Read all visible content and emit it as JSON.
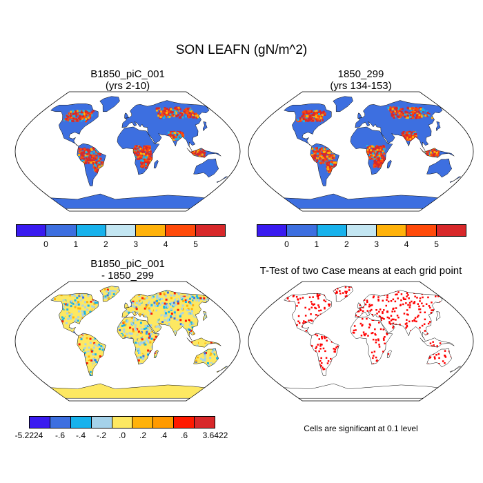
{
  "title": "SON LEAFN (gN/m^2)",
  "panels": {
    "tl": {
      "title1": "B1850_piC_001",
      "title2": "(yrs 2-10)"
    },
    "tr": {
      "title1": "1850_299",
      "title2": "(yrs 134-153)"
    },
    "bl": {
      "title1": "B1850_piC_001",
      "title2": "- 1850_299"
    },
    "br": {
      "title1": "T-Test of two Case means at each grid point",
      "note": "Cells are significant at 0.1 level"
    }
  },
  "colorbar_top": {
    "colors": [
      "#3a1bf0",
      "#3d6fe0",
      "#18b2ec",
      "#c3e6f2",
      "#ffb20a",
      "#ff4a0a",
      "#d8282a"
    ],
    "labels": [
      "0",
      "1",
      "2",
      "3",
      "4",
      "5"
    ]
  },
  "colorbar_bottom": {
    "colors": [
      "#3a1bf0",
      "#3d6fe0",
      "#18b2ec",
      "#a5d2ea",
      "#fde862",
      "#ffb20a",
      "#ff9a00",
      "#ff1a00",
      "#d8282a"
    ],
    "labels": [
      "-5.2224",
      "-.6",
      "-.4",
      "-.2",
      ".0",
      ".2",
      ".4",
      ".6",
      "3.6422"
    ]
  },
  "colors": {
    "ocean": "#ffffff",
    "ttest": "#ff0000",
    "outline": "#000000"
  }
}
